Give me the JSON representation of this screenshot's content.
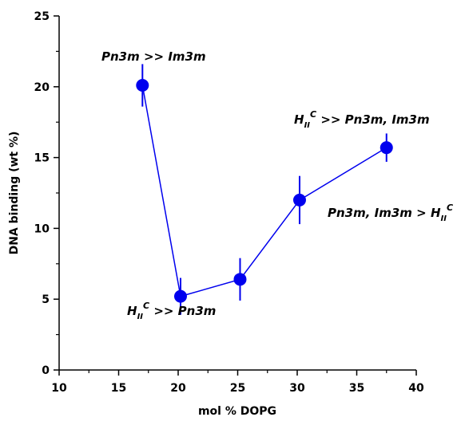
{
  "chart_data": {
    "type": "line",
    "xlabel": "mol % DOPG",
    "ylabel": "DNA binding (wt %)",
    "x": [
      17.0,
      20.2,
      25.2,
      30.2,
      37.5
    ],
    "series": [
      {
        "color": "#0000ee",
        "values": [
          20.1,
          5.2,
          6.4,
          12.0,
          15.7
        ],
        "errors": [
          1.5,
          1.3,
          1.5,
          1.7,
          1.0
        ]
      }
    ],
    "xlim": [
      10,
      40
    ],
    "xticks": [
      10,
      15,
      20,
      25,
      30,
      35,
      40
    ],
    "xminorticks": [
      12.5,
      17.5,
      22.5,
      27.5,
      32.5,
      37.5
    ],
    "ylim": [
      0,
      25
    ],
    "yticks": [
      0,
      5,
      10,
      15,
      20,
      25
    ],
    "yminorticks": [
      2.5,
      7.5,
      12.5,
      17.5,
      22.5
    ],
    "annotations": [
      [
        {
          "text": "Pn3m >> Im3m"
        }
      ],
      [
        {
          "text": "H"
        },
        {
          "text": "II",
          "script": "sub"
        },
        {
          "text": "C",
          "script": "sup"
        },
        {
          "text": " >> Pn3m"
        }
      ],
      [
        {
          "text": "H"
        },
        {
          "text": "II",
          "script": "sub"
        },
        {
          "text": "C",
          "script": "sup"
        },
        {
          "text": " >> Pn3m, Im3m"
        }
      ],
      [
        {
          "text": "Pn3m, Im3m > H"
        },
        {
          "text": "II",
          "script": "sub"
        },
        {
          "text": "C",
          "script": "sup"
        }
      ]
    ]
  }
}
